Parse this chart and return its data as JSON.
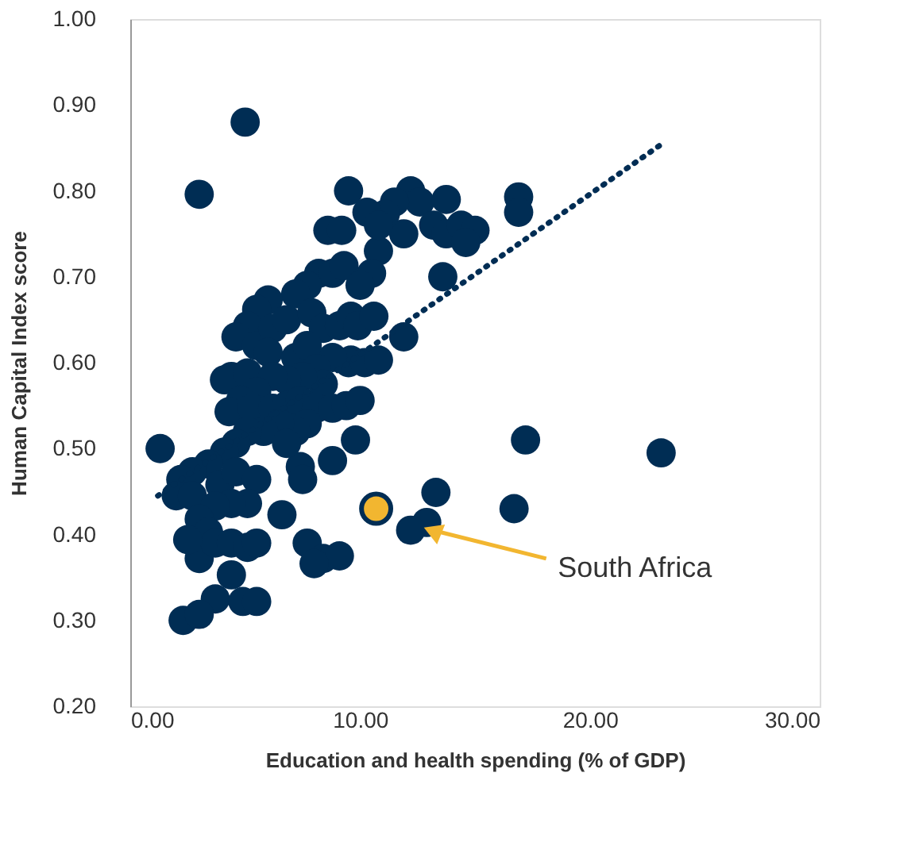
{
  "chart_data": {
    "type": "scatter",
    "xlabel": "Education and health spending (% of GDP)",
    "ylabel": "Human Capital Index score",
    "xlim": [
      0,
      30
    ],
    "xticks": [
      {
        "value": 0,
        "label": "0.00"
      },
      {
        "value": 10,
        "label": "10.00"
      },
      {
        "value": 20,
        "label": "20.00"
      },
      {
        "value": 30,
        "label": "30.00"
      }
    ],
    "ylim": [
      0.2,
      1.0
    ],
    "yticks": [
      {
        "value": 0.2,
        "label": "0.20"
      },
      {
        "value": 0.3,
        "label": "0.30"
      },
      {
        "value": 0.4,
        "label": "0.40"
      },
      {
        "value": 0.5,
        "label": "0.50"
      },
      {
        "value": 0.6,
        "label": "0.60"
      },
      {
        "value": 0.7,
        "label": "0.70"
      },
      {
        "value": 0.8,
        "label": "0.80"
      },
      {
        "value": 0.9,
        "label": "0.90"
      },
      {
        "value": 1.0,
        "label": "1.00"
      }
    ],
    "grid": false,
    "marker": "circle",
    "series": [
      {
        "color": "#002d54",
        "x": [
          5.0,
          3.0,
          9.5,
          12.2,
          12.6,
          13.75,
          13.2,
          13.75,
          14.4,
          15.0,
          14.6,
          16.9,
          16.9,
          13.6,
          11.9,
          11.5,
          11.1,
          10.3,
          10.8,
          10.8,
          10.5,
          8.6,
          9.2,
          8.2,
          8.8,
          9.3,
          10.0,
          7.7,
          7.2,
          6.0,
          5.5,
          5.1,
          4.6,
          5.5,
          6.2,
          6.8,
          7.9,
          8.4,
          9.1,
          9.6,
          9.6,
          9.5,
          8.8,
          10.2,
          10.8,
          11.9,
          9.9,
          10.6,
          4.4,
          4.1,
          5.1,
          6.0,
          7.2,
          7.7,
          8.1,
          8.4,
          7.5,
          6.8,
          6.2,
          5.5,
          4.8,
          4.3,
          5.3,
          6.2,
          6.8,
          7.4,
          8.1,
          8.8,
          9.4,
          10.0,
          9.8,
          7.7,
          7.2,
          6.5,
          5.8,
          5.1,
          4.6,
          4.1,
          3.4,
          2.7,
          2.2,
          2.0,
          2.7,
          3.9,
          4.6,
          5.5,
          5.1,
          4.4,
          3.7,
          3.0,
          3.4,
          3.0,
          3.7,
          4.4,
          5.1,
          5.5,
          6.6,
          7.4,
          7.5,
          8.8,
          6.8,
          7.7,
          8.4,
          9.1,
          8.0,
          1.3,
          3.7,
          4.9,
          5.5,
          2.3,
          3.0,
          2.5,
          4.4,
          13.3,
          12.9,
          12.2,
          16.7,
          17.2,
          23.1
        ],
        "values": [
          0.88,
          0.796,
          0.8,
          0.8,
          0.787,
          0.79,
          0.76,
          0.75,
          0.76,
          0.754,
          0.74,
          0.793,
          0.775,
          0.7,
          0.75,
          0.787,
          0.773,
          0.775,
          0.73,
          0.76,
          0.704,
          0.754,
          0.754,
          0.704,
          0.704,
          0.713,
          0.69,
          0.69,
          0.68,
          0.673,
          0.662,
          0.643,
          0.63,
          0.62,
          0.64,
          0.65,
          0.658,
          0.64,
          0.643,
          0.654,
          0.603,
          0.6,
          0.606,
          0.6,
          0.603,
          0.63,
          0.643,
          0.654,
          0.584,
          0.58,
          0.588,
          0.612,
          0.606,
          0.62,
          0.593,
          0.575,
          0.584,
          0.58,
          0.584,
          0.566,
          0.556,
          0.543,
          0.547,
          0.547,
          0.55,
          0.556,
          0.547,
          0.547,
          0.55,
          0.556,
          0.51,
          0.529,
          0.52,
          0.529,
          0.52,
          0.52,
          0.506,
          0.496,
          0.482,
          0.473,
          0.464,
          0.445,
          0.445,
          0.458,
          0.473,
          0.464,
          0.436,
          0.436,
          0.433,
          0.418,
          0.403,
          0.372,
          0.39,
          0.39,
          0.385,
          0.39,
          0.423,
          0.479,
          0.464,
          0.486,
          0.506,
          0.39,
          0.372,
          0.375,
          0.366,
          0.5,
          0.325,
          0.322,
          0.322,
          0.3,
          0.307,
          0.394,
          0.353,
          0.449,
          0.414,
          0.405,
          0.43,
          0.51,
          0.495
        ]
      },
      {
        "color": "#f2b630",
        "x": [
          10.7
        ],
        "values": [
          0.43
        ]
      },
      {
        "type": "line",
        "color": "#002d54",
        "line_style": "dotted",
        "marker": "none",
        "x": [
          1.2,
          23.1
        ],
        "values": [
          0.445,
          0.854
        ]
      }
    ],
    "annotations": [
      {
        "text": "South Africa",
        "x": 12.6,
        "y": 0.41
      }
    ]
  }
}
